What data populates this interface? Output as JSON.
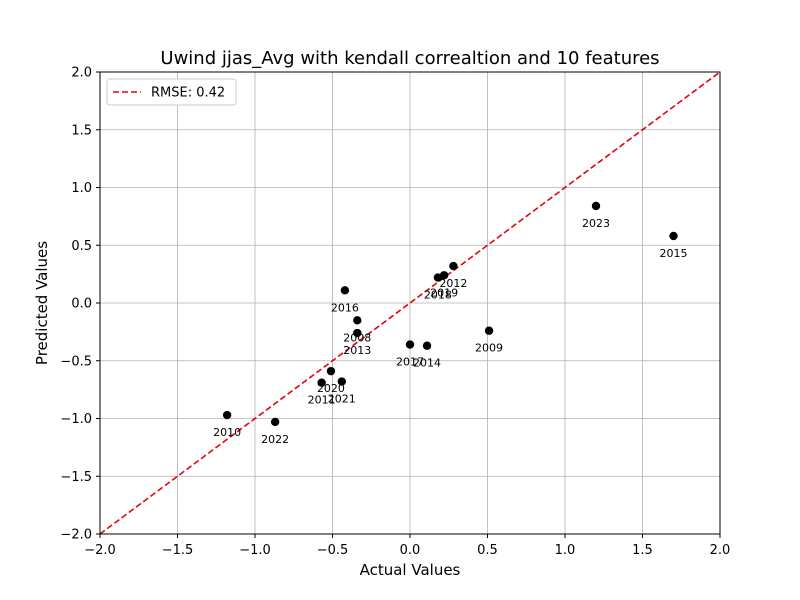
{
  "chart_data": {
    "type": "scatter",
    "title": "Uwind jjas_Avg with kendall correaltion and 10 features",
    "xlabel": "Actual Values",
    "ylabel": "Predicted Values",
    "xlim": [
      -2.0,
      2.0
    ],
    "ylim": [
      -2.0,
      2.0
    ],
    "xticks": [
      "−2.0",
      "−1.5",
      "−1.0",
      "−0.5",
      "0.0",
      "0.5",
      "1.0",
      "1.5",
      "2.0"
    ],
    "yticks": [
      "−2.0",
      "−1.5",
      "−1.0",
      "−0.5",
      "0.0",
      "0.5",
      "1.0",
      "1.5",
      "2.0"
    ],
    "grid": true,
    "legend": {
      "placement": "top-left",
      "entry": "RMSE: 0.42",
      "color": "#e8000b"
    },
    "reference_line": {
      "x": [
        -2.0,
        2.0
      ],
      "y": [
        -2.0,
        2.0
      ],
      "style": "dashed",
      "color": "#e8000b"
    },
    "point_color": "#000000",
    "points": [
      {
        "label": "2023",
        "x": 1.2,
        "y": 0.84
      },
      {
        "label": "2015",
        "x": 1.7,
        "y": 0.58
      },
      {
        "label": "2012",
        "x": 0.28,
        "y": 0.32
      },
      {
        "label": "2019",
        "x": 0.22,
        "y": 0.24
      },
      {
        "label": "2018",
        "x": 0.18,
        "y": 0.22
      },
      {
        "label": "2016",
        "x": -0.42,
        "y": 0.11
      },
      {
        "label": "2008",
        "x": -0.34,
        "y": -0.15
      },
      {
        "label": "2013",
        "x": -0.34,
        "y": -0.26
      },
      {
        "label": "2009",
        "x": 0.51,
        "y": -0.24
      },
      {
        "label": "2017",
        "x": 0.0,
        "y": -0.36
      },
      {
        "label": "2014",
        "x": 0.11,
        "y": -0.37
      },
      {
        "label": "2020",
        "x": -0.51,
        "y": -0.59
      },
      {
        "label": "2011",
        "x": -0.57,
        "y": -0.69
      },
      {
        "label": "2021",
        "x": -0.44,
        "y": -0.68
      },
      {
        "label": "2010",
        "x": -1.18,
        "y": -0.97
      },
      {
        "label": "2022",
        "x": -0.87,
        "y": -1.03
      }
    ]
  }
}
